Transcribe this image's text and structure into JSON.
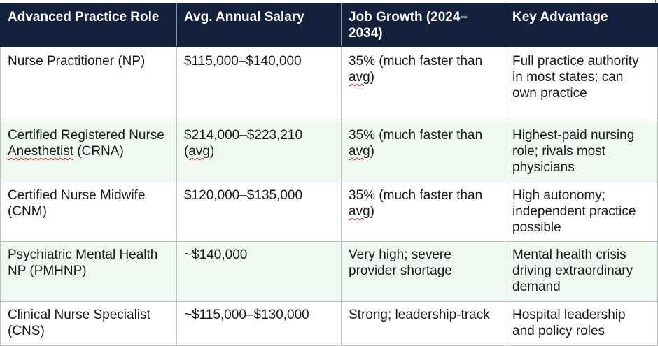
{
  "table": {
    "headers": [
      "Advanced Practice Role",
      "Avg. Annual Salary",
      "Job Growth (2024–2034)",
      "Key Advantage"
    ],
    "rows": [
      {
        "role": "Nurse Practitioner (NP)",
        "salary": "$115,000–$140,000",
        "growth_prefix": "35% (much faster than ",
        "growth_flagged": "avg",
        "growth_suffix": ")",
        "advantage": "Full practice authority in most states; can own practice"
      },
      {
        "role_prefix": "Certified Registered Nurse ",
        "role_flagged": "Anesthetist",
        "role_suffix": " (CRNA)",
        "salary_prefix": "$214,000–$223,210 (",
        "salary_flagged": "avg",
        "salary_suffix": ")",
        "growth_prefix": "35% (much faster than ",
        "growth_flagged": "avg",
        "growth_suffix": ")",
        "advantage": "Highest-paid nursing role; rivals most physicians"
      },
      {
        "role": "Certified Nurse Midwife (CNM)",
        "salary": "$120,000–$135,000",
        "growth_prefix": "35% (much faster than ",
        "growth_flagged": "avg",
        "growth_suffix": ")",
        "advantage": "High autonomy; independent practice possible"
      },
      {
        "role": "Psychiatric Mental Health NP (PMHNP)",
        "salary": "~$140,000",
        "growth": "Very high; severe provider shortage",
        "advantage": "Mental health crisis driving extraordinary demand"
      },
      {
        "role": "Clinical Nurse Specialist (CNS)",
        "salary": "~$115,000–$130,000",
        "growth": "Strong; leadership-track",
        "advantage": "Hospital leadership and policy roles"
      }
    ]
  }
}
